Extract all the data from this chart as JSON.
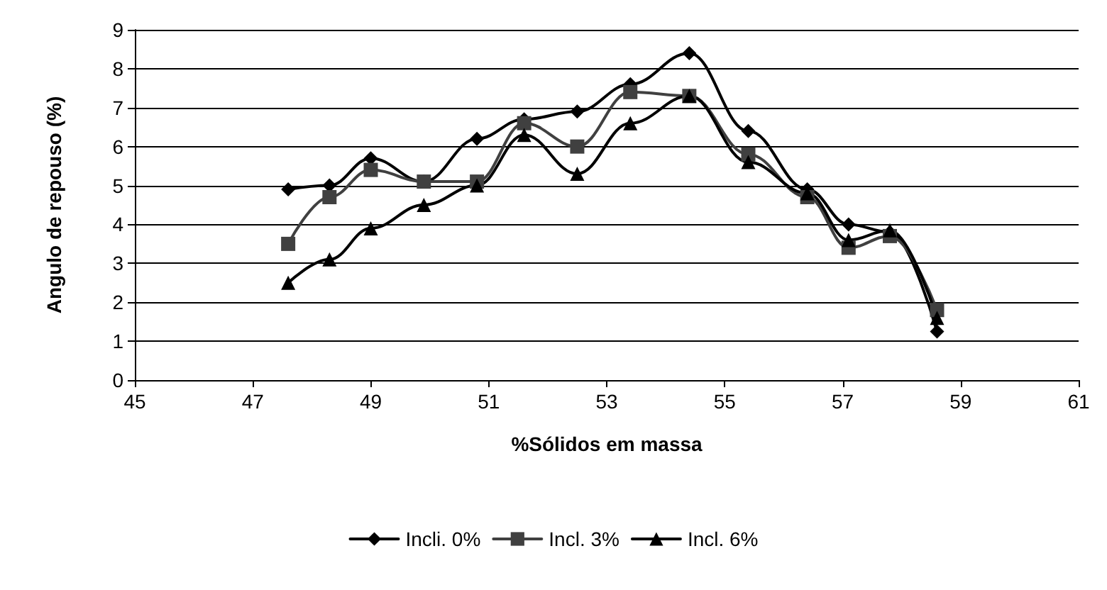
{
  "chart_data": {
    "type": "line",
    "xlabel": "%Sólidos em massa",
    "ylabel": "Angulo de repouso (%)",
    "x": [
      47.6,
      48.3,
      49.0,
      49.9,
      50.8,
      51.6,
      52.5,
      53.4,
      54.4,
      55.4,
      56.4,
      57.1,
      57.8,
      58.6
    ],
    "series": [
      {
        "name": "Incli. 0%",
        "color": "#000000",
        "marker": "diamond",
        "values": [
          4.9,
          5.0,
          5.7,
          5.1,
          6.2,
          6.7,
          6.9,
          7.6,
          8.4,
          6.4,
          4.9,
          4.0,
          3.8,
          1.25
        ]
      },
      {
        "name": "Incl. 3%",
        "color": "#404040",
        "marker": "square",
        "values": [
          3.5,
          4.7,
          5.4,
          5.1,
          5.1,
          6.6,
          6.0,
          7.4,
          7.3,
          5.8,
          4.7,
          3.4,
          3.7,
          1.8
        ]
      },
      {
        "name": "Incl. 6%",
        "color": "#000000",
        "marker": "triangle",
        "values": [
          2.5,
          3.1,
          3.9,
          4.5,
          5.0,
          6.3,
          5.3,
          6.6,
          7.3,
          5.6,
          4.8,
          3.6,
          3.85,
          1.6
        ]
      }
    ],
    "xlim": [
      45,
      61
    ],
    "xticks": [
      45,
      47,
      49,
      51,
      53,
      55,
      57,
      59,
      61
    ],
    "ylim": [
      0,
      9
    ],
    "yticks": [
      0,
      1,
      2,
      3,
      4,
      5,
      6,
      7,
      8,
      9
    ],
    "grid": "y",
    "legend": "bottom",
    "line_style": "solid"
  }
}
